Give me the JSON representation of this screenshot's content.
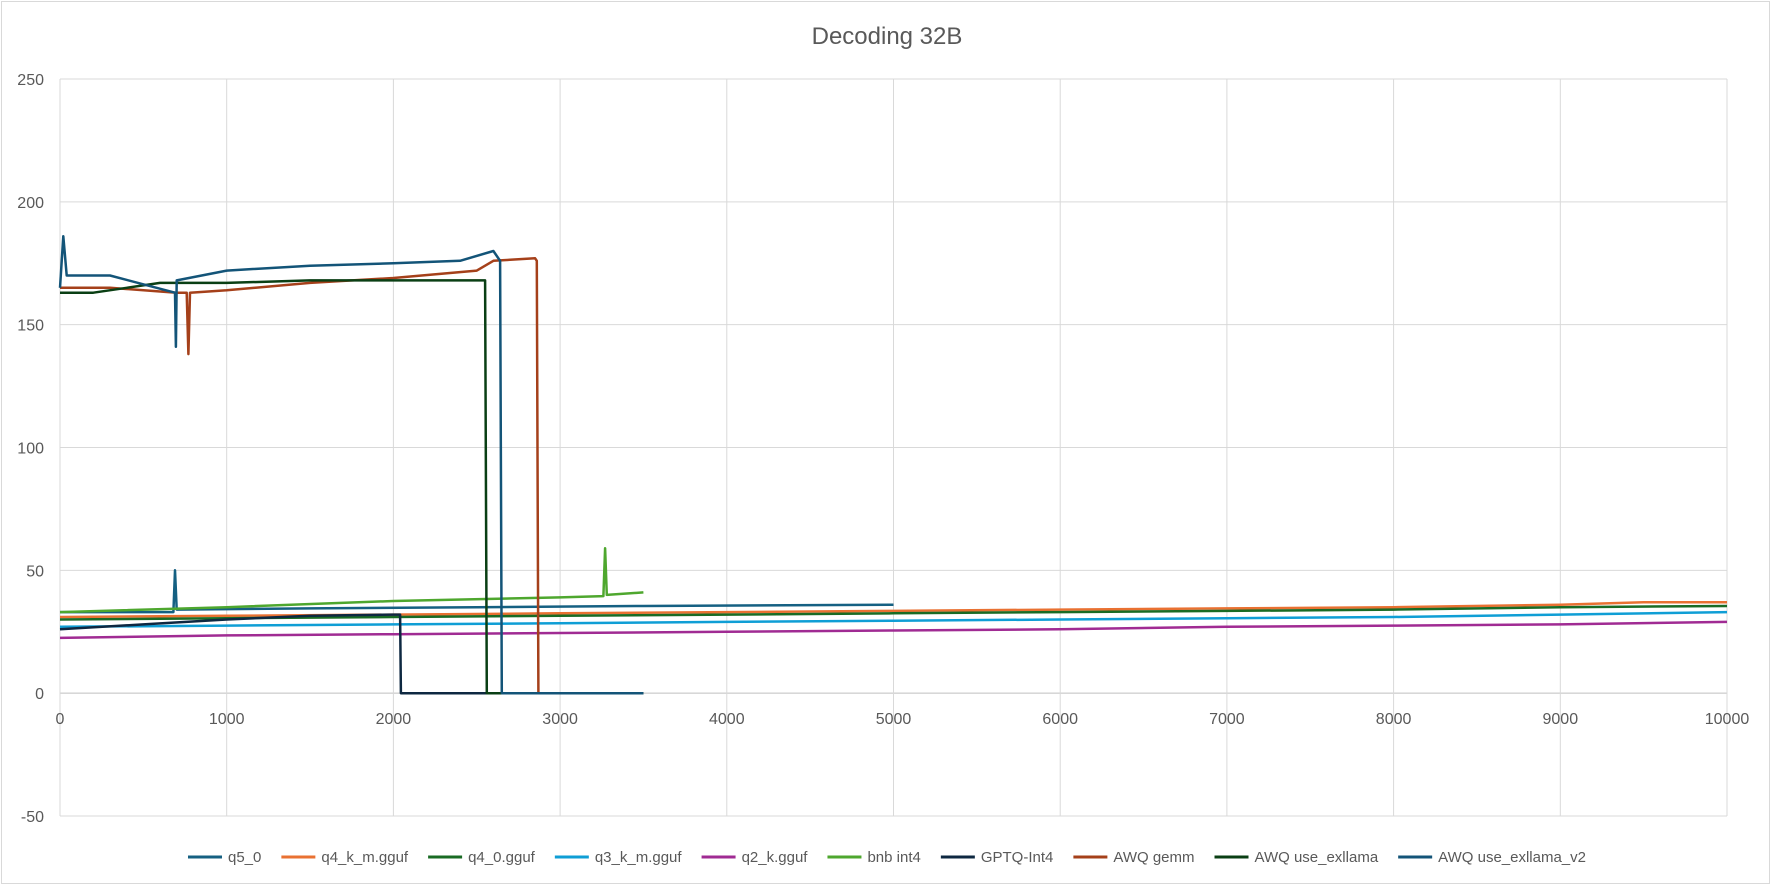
{
  "chart_data": {
    "type": "line",
    "title": "Decoding 32B",
    "xlabel": "",
    "ylabel": "",
    "xlim": [
      0,
      10000
    ],
    "ylim": [
      -50,
      250
    ],
    "x_ticks": [
      "0",
      "1000",
      "2000",
      "3000",
      "4000",
      "5000",
      "6000",
      "7000",
      "8000",
      "9000",
      "10000"
    ],
    "y_ticks": [
      "250",
      "200",
      "150",
      "100",
      "50",
      "0",
      "-50"
    ],
    "grid": true,
    "legend_position": "bottom",
    "series": [
      {
        "name": "q5_0",
        "color": "#156082",
        "points": [
          [
            0,
            33
          ],
          [
            680,
            33
          ],
          [
            690,
            50
          ],
          [
            700,
            34
          ],
          [
            1500,
            34.5
          ],
          [
            2500,
            35
          ],
          [
            3500,
            35.5
          ],
          [
            5000,
            36
          ]
        ]
      },
      {
        "name": "q4_k_m.gguf",
        "color": "#E97132",
        "points": [
          [
            0,
            31
          ],
          [
            1000,
            31.5
          ],
          [
            2000,
            32
          ],
          [
            3000,
            32.5
          ],
          [
            4000,
            33
          ],
          [
            5000,
            33.5
          ],
          [
            6000,
            34
          ],
          [
            7000,
            34.5
          ],
          [
            8000,
            35
          ],
          [
            9000,
            36
          ],
          [
            9500,
            37
          ],
          [
            10000,
            37
          ]
        ]
      },
      {
        "name": "q4_0.gguf",
        "color": "#196B24",
        "points": [
          [
            0,
            30
          ],
          [
            1000,
            30.5
          ],
          [
            2000,
            31
          ],
          [
            3000,
            31.5
          ],
          [
            4000,
            32
          ],
          [
            5000,
            32.5
          ],
          [
            6000,
            33
          ],
          [
            7000,
            33.5
          ],
          [
            8000,
            34
          ],
          [
            9000,
            35
          ],
          [
            10000,
            35.5
          ]
        ]
      },
      {
        "name": "q3_k_m.gguf",
        "color": "#0F9ED5",
        "points": [
          [
            0,
            27
          ],
          [
            1000,
            27.5
          ],
          [
            2000,
            28
          ],
          [
            3000,
            28.5
          ],
          [
            4000,
            29
          ],
          [
            5000,
            29.5
          ],
          [
            6000,
            30
          ],
          [
            7000,
            30.5
          ],
          [
            8000,
            31
          ],
          [
            9000,
            32
          ],
          [
            10000,
            33
          ]
        ]
      },
      {
        "name": "q2_k.gguf",
        "color": "#A02B93",
        "points": [
          [
            0,
            22.5
          ],
          [
            1000,
            23.5
          ],
          [
            2000,
            24
          ],
          [
            3000,
            24.5
          ],
          [
            4000,
            25
          ],
          [
            5000,
            25.5
          ],
          [
            6000,
            26
          ],
          [
            7000,
            27
          ],
          [
            8000,
            27.5
          ],
          [
            9000,
            28
          ],
          [
            10000,
            29
          ]
        ]
      },
      {
        "name": "bnb int4",
        "color": "#4EA72E",
        "points": [
          [
            0,
            33
          ],
          [
            1000,
            35
          ],
          [
            2000,
            37.5
          ],
          [
            3000,
            39
          ],
          [
            3260,
            39.5
          ],
          [
            3270,
            59
          ],
          [
            3280,
            40
          ],
          [
            3500,
            41
          ]
        ]
      },
      {
        "name": "GPTQ-Int4",
        "color": "#0E2841",
        "points": [
          [
            0,
            26
          ],
          [
            500,
            28
          ],
          [
            1000,
            30
          ],
          [
            1500,
            31.5
          ],
          [
            2000,
            32
          ],
          [
            2040,
            32
          ],
          [
            2045,
            0
          ],
          [
            3500,
            0
          ]
        ]
      },
      {
        "name": "AWQ gemm",
        "color": "#A5401A",
        "points": [
          [
            0,
            165
          ],
          [
            300,
            165
          ],
          [
            700,
            163
          ],
          [
            760,
            163
          ],
          [
            770,
            138
          ],
          [
            780,
            163
          ],
          [
            1000,
            164
          ],
          [
            1500,
            167
          ],
          [
            2000,
            169
          ],
          [
            2500,
            172
          ],
          [
            2600,
            176
          ],
          [
            2850,
            177
          ],
          [
            2860,
            176
          ],
          [
            2870,
            0
          ],
          [
            3500,
            0
          ]
        ]
      },
      {
        "name": "AWQ use_exllama",
        "color": "#0A3F14",
        "points": [
          [
            0,
            163
          ],
          [
            200,
            163
          ],
          [
            400,
            165
          ],
          [
            600,
            167
          ],
          [
            1000,
            167
          ],
          [
            1500,
            168
          ],
          [
            2000,
            168
          ],
          [
            2500,
            168
          ],
          [
            2550,
            168
          ],
          [
            2560,
            0
          ],
          [
            3500,
            0
          ]
        ]
      },
      {
        "name": "AWQ use_exllama_v2",
        "color": "#135478",
        "points": [
          [
            0,
            165
          ],
          [
            20,
            186
          ],
          [
            40,
            170
          ],
          [
            300,
            170
          ],
          [
            690,
            163
          ],
          [
            695,
            141
          ],
          [
            700,
            168
          ],
          [
            1000,
            172
          ],
          [
            1500,
            174
          ],
          [
            2000,
            175
          ],
          [
            2400,
            176
          ],
          [
            2600,
            180
          ],
          [
            2640,
            176
          ],
          [
            2650,
            0
          ],
          [
            3500,
            0
          ]
        ]
      }
    ]
  }
}
